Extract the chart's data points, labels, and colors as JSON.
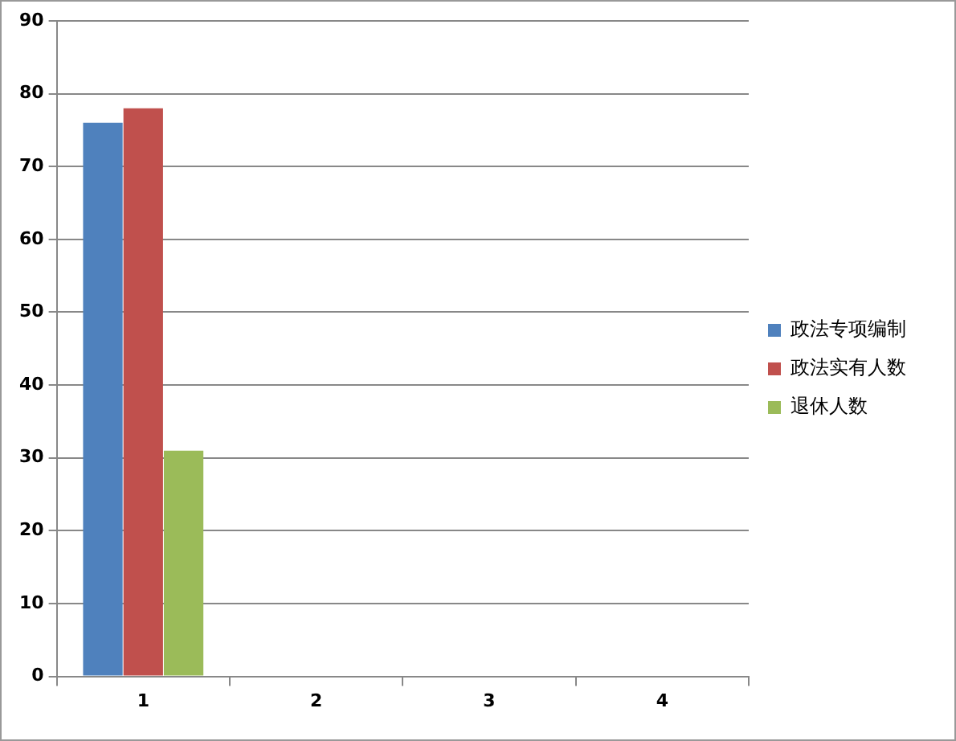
{
  "chart_data": {
    "type": "bar",
    "categories": [
      "1",
      "2",
      "3",
      "4"
    ],
    "series": [
      {
        "name": "政法专项编制",
        "color": "#4f81bd",
        "values": [
          76,
          null,
          null,
          null
        ]
      },
      {
        "name": "政法实有人数",
        "color": "#c0504d",
        "values": [
          78,
          null,
          null,
          null
        ]
      },
      {
        "name": "退休人数",
        "color": "#9bbb59",
        "values": [
          31,
          null,
          null,
          null
        ]
      }
    ],
    "ylim": [
      0,
      90
    ],
    "yticks": [
      0,
      10,
      20,
      30,
      40,
      50,
      60,
      70,
      80,
      90
    ],
    "grid": "y",
    "legend": "right"
  }
}
